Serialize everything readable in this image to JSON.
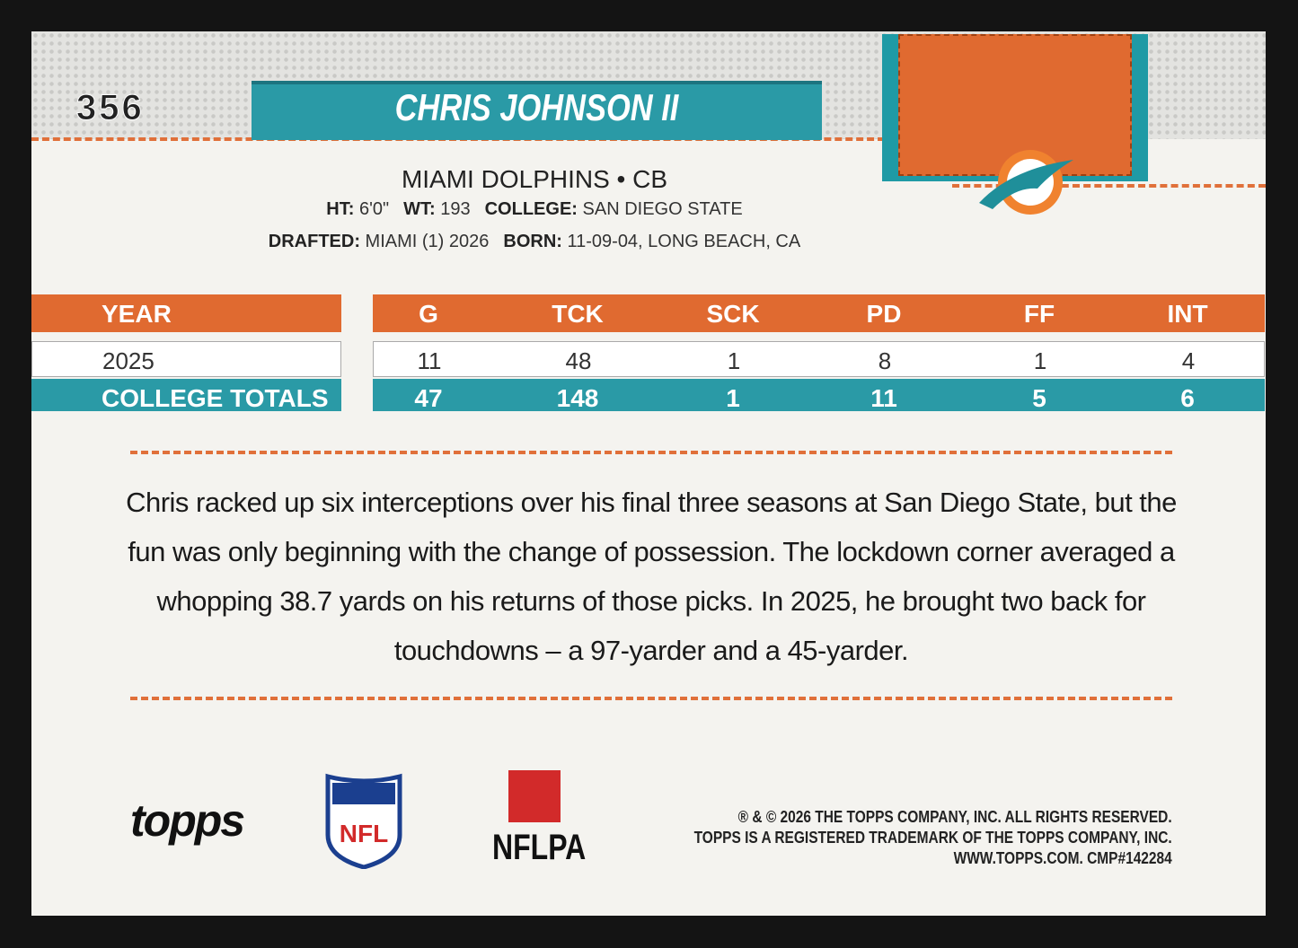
{
  "card": {
    "number": "356",
    "name": "CHRIS JOHNSON II",
    "team_line": "MIAMI DOLPHINS • CB",
    "bio": [
      [
        {
          "label": "HT:",
          "value": "6'0\""
        },
        {
          "label": "WT:",
          "value": "193"
        },
        {
          "label": "COLLEGE:",
          "value": "SAN DIEGO STATE"
        }
      ],
      [
        {
          "label": "DRAFTED:",
          "value": "MIAMI (1) 2026"
        },
        {
          "label": "BORN:",
          "value": "11-09-04, LONG BEACH, CA"
        }
      ]
    ]
  },
  "stats": {
    "columns": [
      "YEAR",
      "G",
      "TCK",
      "SCK",
      "PD",
      "FF",
      "INT"
    ],
    "rows": [
      [
        "2025",
        11,
        48,
        1,
        8,
        1,
        4
      ]
    ],
    "totals": [
      "COLLEGE TOTALS",
      47,
      148,
      1,
      11,
      5,
      6
    ]
  },
  "blurb": "Chris racked up six interceptions over his final three seasons at San Diego State, but the fun was only beginning with the change of possession. The lockdown corner averaged a whopping 38.7 yards on his returns of those picks. In 2025, he brought two back for touchdowns – a 97-yarder and a 45-yarder.",
  "footer": {
    "logos": [
      "topps",
      "NFL",
      "NFLPA"
    ],
    "legal": [
      "® & © 2026 THE TOPPS COMPANY, INC. ALL RIGHTS RESERVED.",
      "TOPPS IS A REGISTERED TRADEMARK OF THE TOPPS COMPANY, INC.",
      "WWW.TOPPS.COM. CMP#142284"
    ]
  }
}
